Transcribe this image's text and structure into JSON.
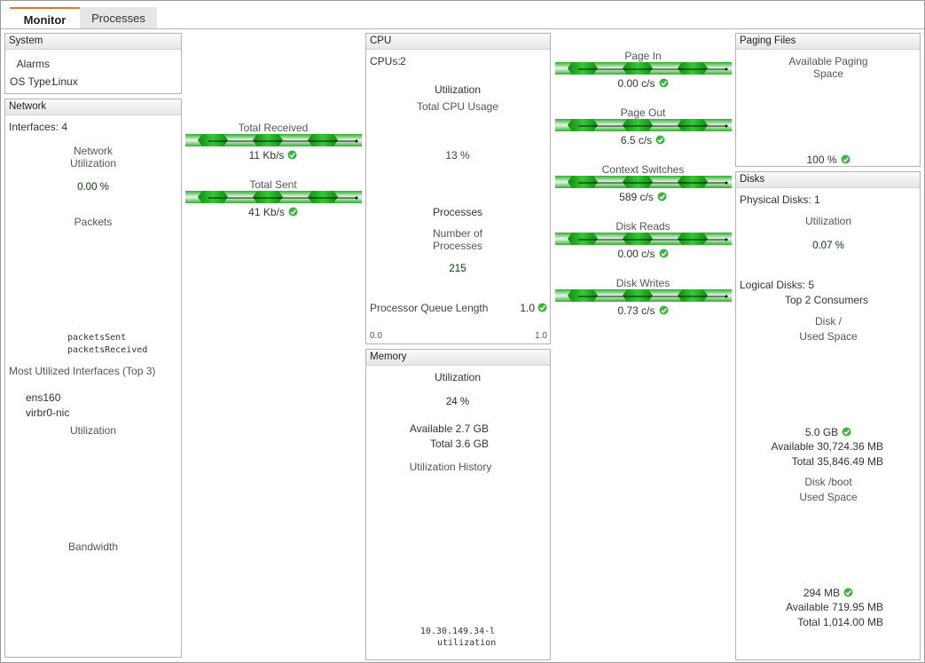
{
  "tabs": {
    "active": "Monitor",
    "other": "Processes"
  },
  "system": {
    "title": "System",
    "alarms": "Alarms",
    "os_type_label": "OS Type:",
    "os_type": "Linux"
  },
  "network": {
    "title": "Network",
    "interfaces": "Interfaces: 4",
    "utilization_title": "Network Utilization",
    "utilization": "0.00 %",
    "packets_title": "Packets",
    "legend": [
      "packetsSent",
      "packetsReceived"
    ],
    "top_title": "Most Utilized Interfaces (Top 3)",
    "top_interfaces": [
      "ens160",
      "virbr0-nic"
    ],
    "chart_titles": [
      "Utilization",
      "Bandwidth"
    ]
  },
  "traffic": [
    {
      "label": "Total Received",
      "value": "11 Kb/s"
    },
    {
      "label": "Total Sent",
      "value": "41 Kb/s"
    }
  ],
  "cpu": {
    "title": "CPU",
    "cpus_label": "CPUs:",
    "cpus": "2",
    "utilization_title": "Utilization",
    "total_usage_label": "Total CPU Usage",
    "total_usage": "13 %",
    "processes_title": "Processes",
    "processes_label": "Number of Processes",
    "processes": "215",
    "queue_label": "Processor Queue Length",
    "queue_value": "1.0",
    "queue_min": "0.0",
    "queue_max": "1.0"
  },
  "memory": {
    "title": "Memory",
    "utilization_title": "Utilization",
    "utilization": "24 %",
    "available": "Available 2.7 GB",
    "total": "Total 3.6 GB",
    "history_title": "Utilization History",
    "host": "10.30.149.34-l",
    "legend": "utilization"
  },
  "counters": [
    {
      "label": "Page In",
      "value": "0.00 c/s"
    },
    {
      "label": "Page Out",
      "value": "6.5 c/s"
    },
    {
      "label": "Context Switches",
      "value": "589 c/s"
    },
    {
      "label": "Disk Reads",
      "value": "0.00 c/s"
    },
    {
      "label": "Disk Writes",
      "value": "0.73 c/s"
    }
  ],
  "paging": {
    "title": "Paging Files",
    "label": "Available Paging Space",
    "value": "100 %"
  },
  "disks": {
    "title": "Disks",
    "physical": "Physical Disks: 1",
    "utilization_title": "Utilization",
    "utilization": "0.07 %",
    "logical": "Logical Disks: 5",
    "top_title": "Top 2 Consumers",
    "items": [
      {
        "name": "Disk /",
        "label": "Used Space",
        "used": "5.0 GB",
        "available": "Available 30,724.36 MB",
        "total": "Total 35,846.49 MB"
      },
      {
        "name": "Disk /boot",
        "label": "Used Space",
        "used": "294 MB",
        "available": "Available 719.95 MB",
        "total": "Total 1,014.00 MB"
      }
    ]
  }
}
